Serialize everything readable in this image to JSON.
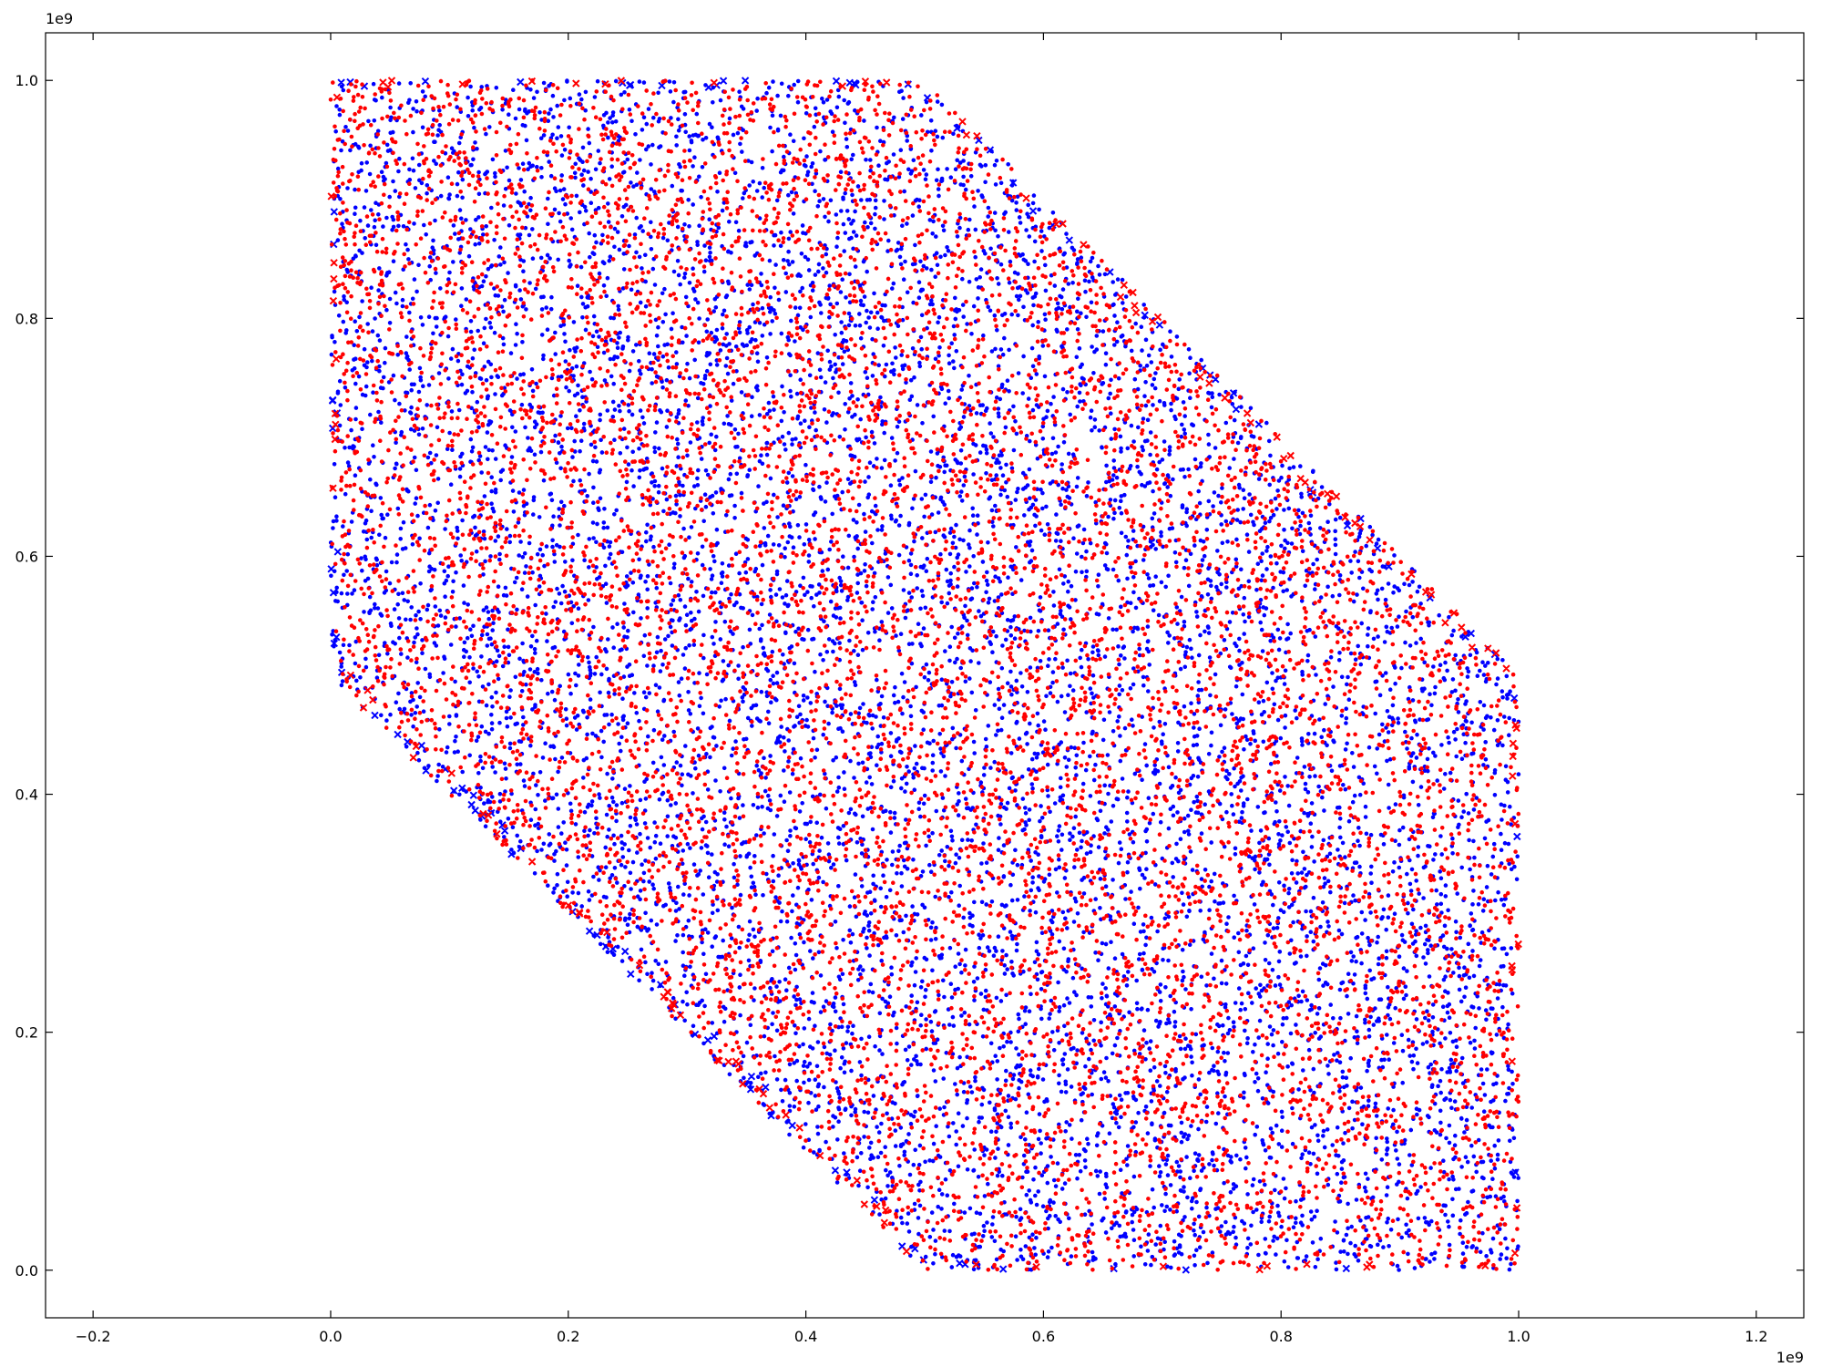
{
  "chart_data": {
    "type": "scatter",
    "title": "",
    "xlabel": "",
    "ylabel": "",
    "xlim": [
      -240000000.0,
      1240000000.0
    ],
    "ylim": [
      -40000000.0,
      1040000000.0
    ],
    "grid": false,
    "legend": "none",
    "x_ticks": [
      -200000000.0,
      0,
      200000000.0,
      400000000.0,
      600000000.0,
      800000000.0,
      1000000000.0,
      1200000000.0
    ],
    "x_tick_labels": [
      "−0.2",
      "0.0",
      "0.2",
      "0.4",
      "0.6",
      "0.8",
      "1.0",
      "1.2"
    ],
    "y_ticks": [
      0,
      200000000.0,
      400000000.0,
      600000000.0,
      800000000.0,
      1000000000.0
    ],
    "y_tick_labels": [
      "0.0",
      "0.2",
      "0.4",
      "0.6",
      "0.8",
      "1.0"
    ],
    "x_offset_label": "1e9",
    "y_offset_label": "1e9",
    "region": {
      "description_points": [
        [
          0,
          500000000.0
        ],
        [
          0,
          1000000000.0
        ],
        [
          500000000.0,
          1000000000.0
        ],
        [
          1000000000.0,
          500000000.0
        ],
        [
          1000000000.0,
          0
        ],
        [
          500000000.0,
          0
        ]
      ]
    },
    "series": [
      {
        "color": "#0000ff",
        "marker": "dot",
        "count": 9000,
        "edge_marker": "x"
      },
      {
        "color": "#ff0000",
        "marker": "dot",
        "count": 9000,
        "edge_marker": "x"
      }
    ]
  }
}
